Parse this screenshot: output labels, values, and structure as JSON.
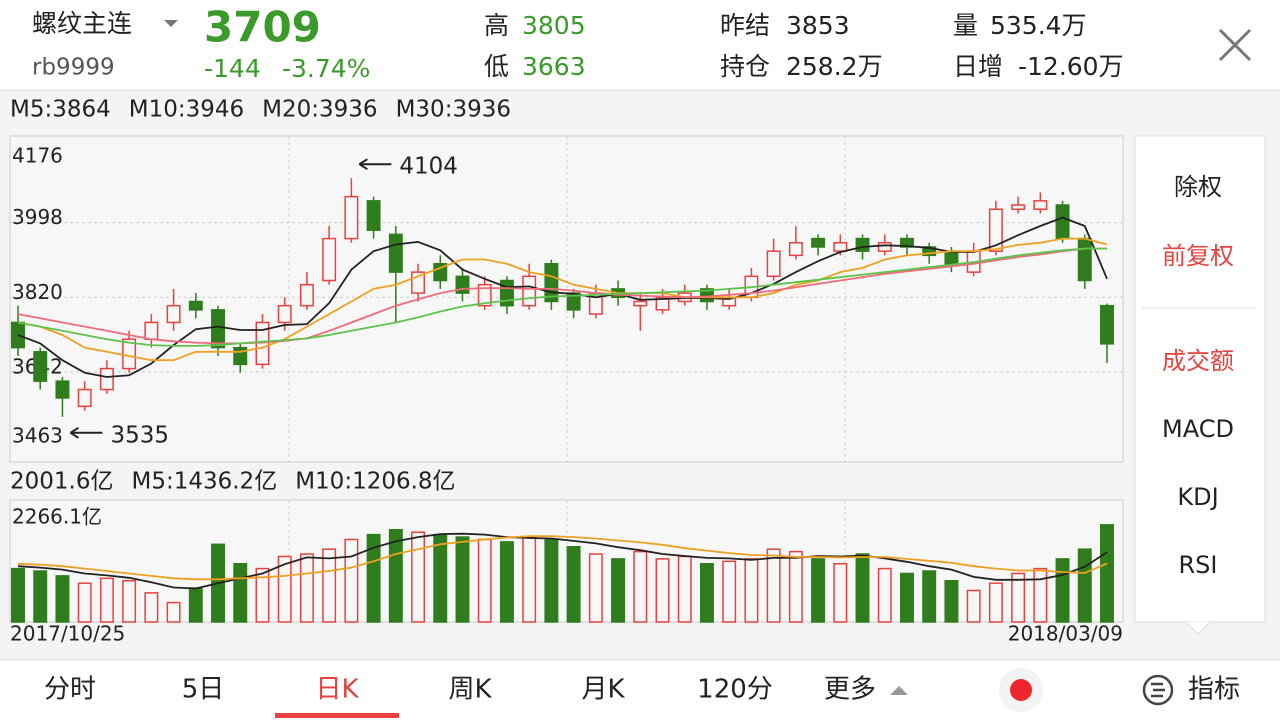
{
  "header": {
    "name": "螺纹主连",
    "code": "rb9999",
    "price": 3709,
    "change": -144,
    "change_pct": "-3.74%",
    "stats": [
      {
        "label": "高",
        "value": 3805
      },
      {
        "label": "低",
        "value": 3663
      },
      {
        "label": "昨结",
        "value": 3853
      },
      {
        "label": "持仓",
        "value": "258.2万"
      },
      {
        "label": "量",
        "value": "535.4万"
      },
      {
        "label": "日增",
        "value": "-12.60万"
      }
    ]
  },
  "chart_data": {
    "type": "candlestick",
    "ylim": [
      3463,
      4176
    ],
    "yticks": [
      4176,
      3998,
      3820,
      3642,
      3463
    ],
    "categories": [
      "2017/10/25",
      null,
      null,
      null,
      null,
      null,
      null,
      null,
      null,
      null,
      null,
      null,
      null,
      null,
      null,
      null,
      null,
      null,
      null,
      null,
      null,
      null,
      null,
      null,
      null,
      null,
      null,
      null,
      null,
      null,
      null,
      null,
      null,
      null,
      null,
      null,
      null,
      null,
      null,
      null,
      null,
      null,
      null,
      null,
      null,
      null,
      null,
      null,
      null,
      "2018/03/09"
    ],
    "up_color": "#e8413e",
    "down_color": "#2f7d1c",
    "open": [
      3760,
      3690,
      3620,
      3560,
      3600,
      3650,
      3720,
      3760,
      3810,
      3790,
      3700,
      3660,
      3760,
      3800,
      3860,
      3960,
      4050,
      3970,
      3830,
      3900,
      3870,
      3800,
      3860,
      3800,
      3900,
      3830,
      3780,
      3840,
      3800,
      3790,
      3810,
      3840,
      3800,
      3820,
      3870,
      3920,
      3960,
      3930,
      3960,
      3930,
      3960,
      3940,
      3930,
      3880,
      3930,
      4030,
      4030,
      4040,
      3960,
      3800
    ],
    "high": [
      3800,
      3700,
      3630,
      3620,
      3670,
      3740,
      3780,
      3840,
      3830,
      3800,
      3710,
      3780,
      3820,
      3880,
      3990,
      4104,
      4060,
      3990,
      3900,
      3920,
      3890,
      3870,
      3870,
      3900,
      3910,
      3840,
      3850,
      3860,
      3830,
      3840,
      3850,
      3850,
      3840,
      3890,
      3960,
      3990,
      3970,
      3970,
      3970,
      3970,
      3970,
      3950,
      3940,
      3950,
      4050,
      4060,
      4070,
      4050,
      3970,
      3805
    ],
    "low": [
      3680,
      3600,
      3535,
      3550,
      3590,
      3640,
      3700,
      3740,
      3770,
      3680,
      3640,
      3650,
      3740,
      3790,
      3850,
      3950,
      3960,
      3760,
      3810,
      3840,
      3810,
      3790,
      3780,
      3790,
      3790,
      3770,
      3770,
      3800,
      3740,
      3780,
      3800,
      3790,
      3790,
      3810,
      3860,
      3910,
      3920,
      3920,
      3910,
      3920,
      3920,
      3900,
      3880,
      3870,
      3920,
      4020,
      4020,
      3950,
      3840,
      3663
    ],
    "close": [
      3700,
      3620,
      3580,
      3600,
      3650,
      3720,
      3760,
      3800,
      3790,
      3700,
      3660,
      3760,
      3800,
      3850,
      3960,
      4060,
      3980,
      3880,
      3880,
      3860,
      3830,
      3850,
      3800,
      3870,
      3810,
      3790,
      3830,
      3820,
      3810,
      3820,
      3830,
      3810,
      3820,
      3870,
      3930,
      3950,
      3940,
      3950,
      3930,
      3950,
      3940,
      3920,
      3900,
      3930,
      4030,
      4040,
      4050,
      3960,
      3860,
      3709
    ],
    "ma": [
      {
        "label": "M5:3864",
        "color": "#222222",
        "values": [
          3730,
          3710,
          3670,
          3640,
          3630,
          3634,
          3662,
          3706,
          3744,
          3750,
          3742,
          3742,
          3754,
          3756,
          3806,
          3886,
          3930,
          3946,
          3952,
          3932,
          3886,
          3864,
          3844,
          3846,
          3832,
          3828,
          3820,
          3828,
          3814,
          3816,
          3818,
          3818,
          3816,
          3830,
          3852,
          3880,
          3906,
          3928,
          3940,
          3944,
          3942,
          3938,
          3928,
          3928,
          3944,
          3968,
          3990,
          4010,
          3990,
          3864
        ]
      },
      {
        "label": "M10:3946",
        "color": "#f0a020",
        "values": [
          3760,
          3750,
          3730,
          3700,
          3690,
          3680,
          3670,
          3670,
          3690,
          3690,
          3690,
          3700,
          3720,
          3750,
          3780,
          3810,
          3840,
          3850,
          3870,
          3890,
          3910,
          3910,
          3900,
          3880,
          3870,
          3850,
          3840,
          3830,
          3830,
          3830,
          3820,
          3820,
          3820,
          3820,
          3830,
          3850,
          3860,
          3880,
          3890,
          3910,
          3920,
          3925,
          3930,
          3930,
          3935,
          3945,
          3950,
          3960,
          3960,
          3946
        ]
      },
      {
        "label": "M20:3936",
        "color": "#f06a7a",
        "values": [
          3780,
          3770,
          3760,
          3750,
          3740,
          3730,
          3720,
          3715,
          3712,
          3710,
          3710,
          3712,
          3716,
          3722,
          3740,
          3760,
          3780,
          3800,
          3815,
          3830,
          3840,
          3842,
          3842,
          3840,
          3840,
          3836,
          3830,
          3826,
          3824,
          3822,
          3820,
          3822,
          3826,
          3830,
          3836,
          3844,
          3852,
          3860,
          3868,
          3876,
          3882,
          3888,
          3894,
          3900,
          3908,
          3916,
          3922,
          3930,
          3936,
          3936
        ]
      },
      {
        "label": "M30:3936",
        "color": "#5cc44c",
        "values": [
          3760,
          3750,
          3740,
          3730,
          3720,
          3712,
          3706,
          3704,
          3704,
          3706,
          3710,
          3714,
          3718,
          3722,
          3730,
          3740,
          3750,
          3760,
          3772,
          3786,
          3798,
          3806,
          3812,
          3818,
          3822,
          3824,
          3826,
          3828,
          3830,
          3832,
          3834,
          3836,
          3840,
          3844,
          3850,
          3856,
          3862,
          3868,
          3874,
          3880,
          3886,
          3892,
          3898,
          3904,
          3912,
          3920,
          3926,
          3932,
          3936,
          3936
        ]
      }
    ],
    "annotations": [
      {
        "text": "4104",
        "index": 15
      },
      {
        "text": "3535",
        "index": 2
      }
    ],
    "volume": {
      "label": "2001.6亿",
      "color": "#2f7d1c",
      "ylim": [
        0,
        2266.1
      ],
      "yticks": [
        {
          "value": 2266.1,
          "label": "2266.1亿"
        }
      ],
      "values": [
        1100,
        1050,
        950,
        800,
        900,
        850,
        600,
        400,
        700,
        1600,
        1200,
        1100,
        1350,
        1400,
        1500,
        1700,
        1800,
        1900,
        1850,
        1800,
        1750,
        1700,
        1650,
        1750,
        1700,
        1550,
        1400,
        1300,
        1450,
        1300,
        1350,
        1200,
        1250,
        1300,
        1500,
        1450,
        1300,
        1200,
        1400,
        1100,
        1000,
        1050,
        850,
        650,
        800,
        1000,
        1100,
        1300,
        1500,
        2001.6
      ],
      "ma": [
        {
          "label": "M5:1436.2亿",
          "color": "#222222",
          "values": [
            1150,
            1120,
            1080,
            1000,
            960,
            910,
            820,
            710,
            690,
            800,
            900,
            1000,
            1190,
            1330,
            1310,
            1350,
            1530,
            1660,
            1750,
            1810,
            1820,
            1800,
            1750,
            1730,
            1720,
            1670,
            1620,
            1540,
            1480,
            1400,
            1360,
            1320,
            1310,
            1280,
            1320,
            1320,
            1360,
            1350,
            1370,
            1310,
            1240,
            1150,
            1080,
            930,
            870,
            870,
            880,
            970,
            1140,
            1436.2
          ]
        },
        {
          "label": "M10:1206.8亿",
          "color": "#f0a020",
          "values": [
            1200,
            1180,
            1150,
            1100,
            1050,
            1000,
            950,
            900,
            880,
            880,
            900,
            920,
            950,
            1000,
            1050,
            1120,
            1250,
            1400,
            1500,
            1600,
            1650,
            1700,
            1740,
            1770,
            1770,
            1750,
            1720,
            1680,
            1640,
            1590,
            1520,
            1470,
            1420,
            1380,
            1370,
            1340,
            1340,
            1330,
            1340,
            1340,
            1300,
            1260,
            1220,
            1150,
            1100,
            1060,
            1060,
            1030,
            1010,
            1206.8
          ]
        }
      ]
    }
  },
  "side_menu": [
    "除权",
    "前复权",
    "成交额",
    "MACD",
    "KDJ",
    "RSI"
  ],
  "tabs": [
    "分时",
    "5日",
    "日K",
    "周K",
    "月K",
    "120分",
    "更多",
    "指标"
  ]
}
